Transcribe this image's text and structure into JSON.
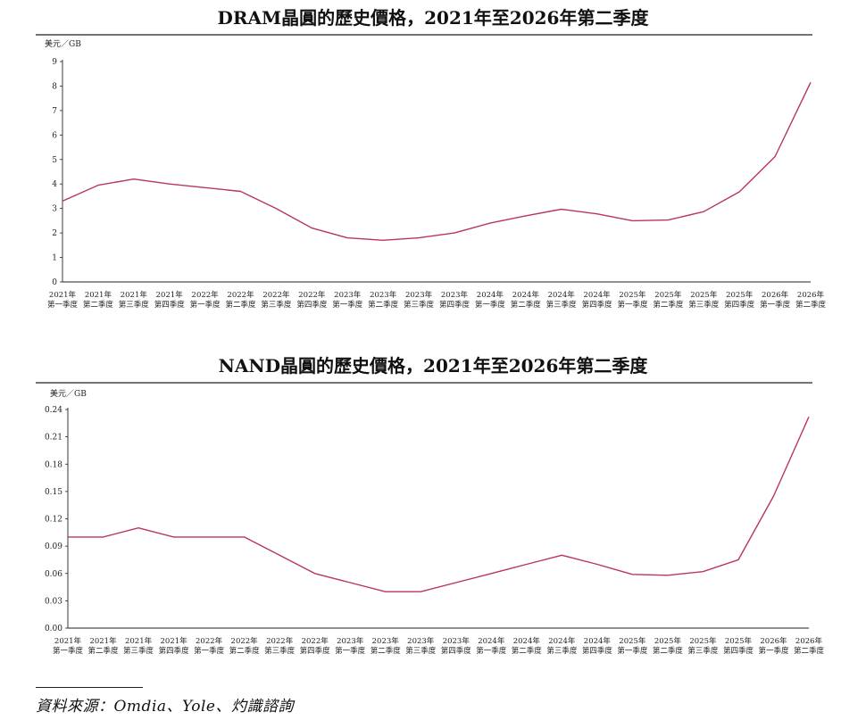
{
  "colors": {
    "line": "#b8375a",
    "axis": "#222222"
  },
  "source": "資料來源：Omdia、Yole、灼識諮詢",
  "chart_data": [
    {
      "type": "line",
      "title": "DRAM晶圓的歷史價格，2021年至2026年第二季度",
      "ylabel": "美元／GB",
      "ylim": [
        0,
        9
      ],
      "yticks": [
        "0",
        "1",
        "2",
        "3",
        "4",
        "5",
        "6",
        "7",
        "8",
        "9"
      ],
      "categories": [
        [
          "2021年",
          "第一季度"
        ],
        [
          "2021年",
          "第二季度"
        ],
        [
          "2021年",
          "第三季度"
        ],
        [
          "2021年",
          "第四季度"
        ],
        [
          "2022年",
          "第一季度"
        ],
        [
          "2022年",
          "第二季度"
        ],
        [
          "2022年",
          "第三季度"
        ],
        [
          "2022年",
          "第四季度"
        ],
        [
          "2023年",
          "第一季度"
        ],
        [
          "2023年",
          "第二季度"
        ],
        [
          "2023年",
          "第三季度"
        ],
        [
          "2023年",
          "第四季度"
        ],
        [
          "2024年",
          "第一季度"
        ],
        [
          "2024年",
          "第二季度"
        ],
        [
          "2024年",
          "第三季度"
        ],
        [
          "2024年",
          "第四季度"
        ],
        [
          "2025年",
          "第一季度"
        ],
        [
          "2025年",
          "第二季度"
        ],
        [
          "2025年",
          "第三季度"
        ],
        [
          "2025年",
          "第四季度"
        ],
        [
          "2026年",
          "第一季度"
        ],
        [
          "2026年",
          "第二季度"
        ]
      ],
      "values": [
        3.3,
        3.95,
        4.2,
        4.0,
        3.85,
        3.7,
        3.0,
        2.2,
        1.8,
        1.7,
        1.8,
        2.0,
        2.4,
        2.7,
        2.97,
        2.78,
        2.5,
        2.53,
        2.87,
        3.68,
        5.12,
        8.15
      ],
      "grid": false
    },
    {
      "type": "line",
      "title": "NAND晶圓的歷史價格，2021年至2026年第二季度",
      "ylabel": "美元／GB",
      "ylim": [
        0,
        0.24
      ],
      "yticks": [
        "0.00",
        "0.03",
        "0.06",
        "0.09",
        "0.12",
        "0.15",
        "0.18",
        "0.21",
        "0.24"
      ],
      "categories": [
        [
          "2021年",
          "第一季度"
        ],
        [
          "2021年",
          "第二季度"
        ],
        [
          "2021年",
          "第三季度"
        ],
        [
          "2021年",
          "第四季度"
        ],
        [
          "2022年",
          "第一季度"
        ],
        [
          "2022年",
          "第二季度"
        ],
        [
          "2022年",
          "第三季度"
        ],
        [
          "2022年",
          "第四季度"
        ],
        [
          "2023年",
          "第一季度"
        ],
        [
          "2023年",
          "第二季度"
        ],
        [
          "2023年",
          "第三季度"
        ],
        [
          "2023年",
          "第四季度"
        ],
        [
          "2024年",
          "第一季度"
        ],
        [
          "2024年",
          "第二季度"
        ],
        [
          "2024年",
          "第三季度"
        ],
        [
          "2024年",
          "第四季度"
        ],
        [
          "2025年",
          "第一季度"
        ],
        [
          "2025年",
          "第二季度"
        ],
        [
          "2025年",
          "第三季度"
        ],
        [
          "2025年",
          "第四季度"
        ],
        [
          "2026年",
          "第一季度"
        ],
        [
          "2026年",
          "第二季度"
        ]
      ],
      "values": [
        0.1,
        0.1,
        0.11,
        0.1,
        0.1,
        0.1,
        0.08,
        0.06,
        0.05,
        0.04,
        0.04,
        0.05,
        0.06,
        0.07,
        0.08,
        0.07,
        0.059,
        0.058,
        0.062,
        0.075,
        0.145,
        0.232
      ],
      "grid": false
    }
  ]
}
